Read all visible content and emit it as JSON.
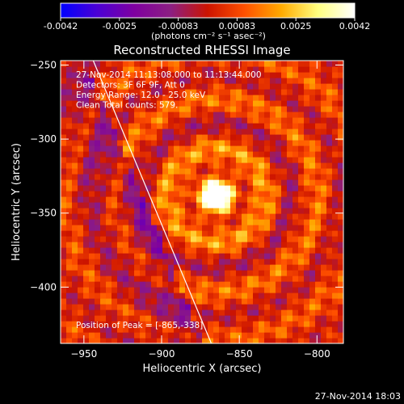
{
  "colorbar": {
    "tick_labels": [
      "-0.0042",
      "-0.0025",
      "-0.00083",
      "0.00083",
      "0.0025",
      "0.0042"
    ],
    "unit_label": "(photons cm⁻² s⁻¹ asec⁻²)",
    "colormap": "RHESSI",
    "stops": [
      "#0000ff",
      "#4b00d4",
      "#7f00a0",
      "#8c1f82",
      "#cc1400",
      "#ff5000",
      "#ffaa00",
      "#ffff80",
      "#ffffff"
    ]
  },
  "chart_data": {
    "type": "heatmap",
    "title": "Reconstructed RHESSI Image",
    "xlabel": "Heliocentric X (arcsec)",
    "ylabel": "Heliocentric Y (arcsec)",
    "xlim": [
      -965,
      -783
    ],
    "ylim": [
      -438,
      -247
    ],
    "xticks": [
      -950,
      -900,
      -850,
      -800
    ],
    "yticks": [
      -250,
      -300,
      -350,
      -400
    ],
    "peak_position": [
      -865,
      -338
    ],
    "limb_line": [
      [
        -944,
        -247
      ],
      [
        -868,
        -438
      ]
    ],
    "annotations": [
      "27-Nov-2014 11:13:08.000 to 11:13:44.000",
      "Detectors: 3F 6F 9F, Att 0",
      "Energy Range: 12.0 - 25.0 keV",
      "Clean     Total counts: 579.",
      "Position of Peak = [-865,-338]"
    ]
  },
  "footer": {
    "timestamp": "27-Nov-2014 18:03"
  }
}
